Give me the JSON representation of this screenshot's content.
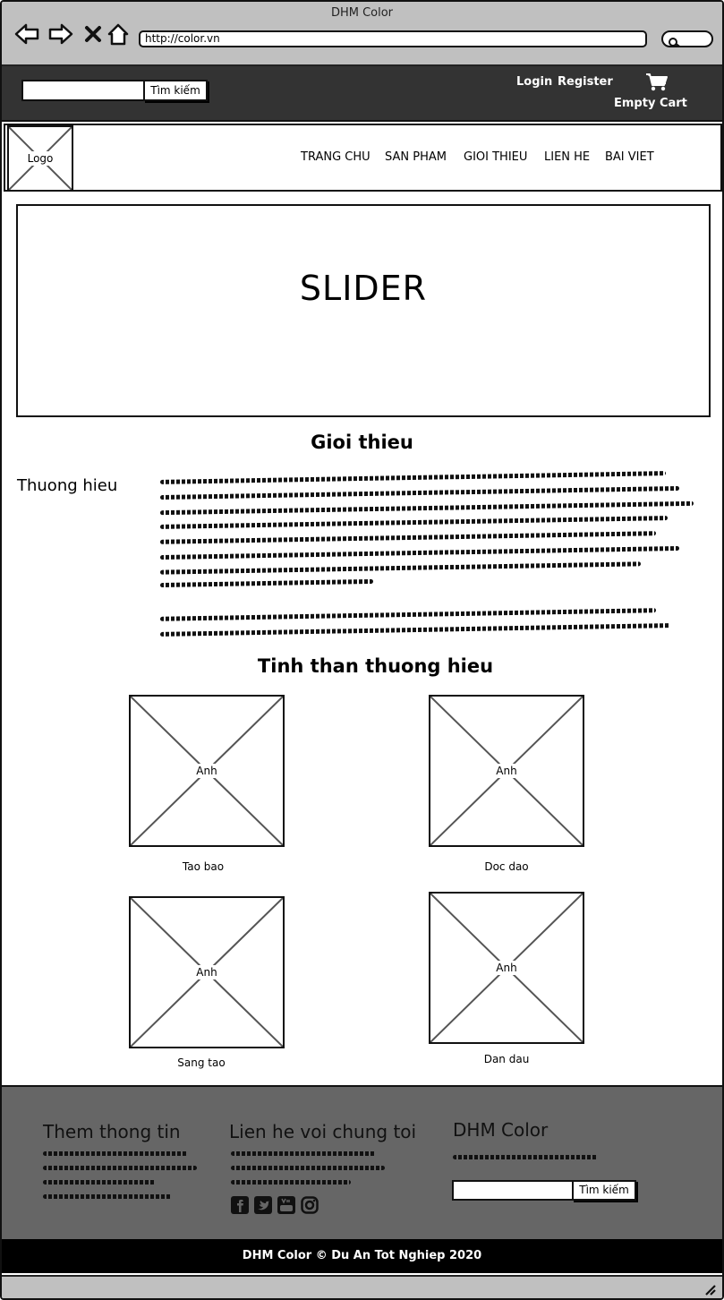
{
  "window": {
    "title": "DHM Color"
  },
  "browser": {
    "url": "http://color.vn"
  },
  "topbar": {
    "search_button": "Tìm kiếm",
    "login": "Login",
    "register": "Register",
    "cart_text": "Empty Cart"
  },
  "header": {
    "logo": "Logo",
    "nav": [
      "TRANG CHU",
      "SAN PHAM",
      "GIOI THIEU",
      "LIEN HE",
      "BAI VIET"
    ]
  },
  "slider": {
    "label": "SLIDER"
  },
  "intro": {
    "heading": "Gioi thieu",
    "subheading": "Thuong hieu"
  },
  "spirit": {
    "heading": "Tinh than thuong hieu",
    "placeholder": "Anh",
    "items": [
      "Tao bao",
      "Doc dao",
      "Sang tao",
      "Dan dau"
    ]
  },
  "footer": {
    "col1_title": "Them thong tin",
    "col2_title": "Lien he voi chung toi",
    "col3_title": "DHM Color",
    "search_button": "Tìm kiếm"
  },
  "copyright": "DHM Color © Du An Tot Nghiep 2020"
}
